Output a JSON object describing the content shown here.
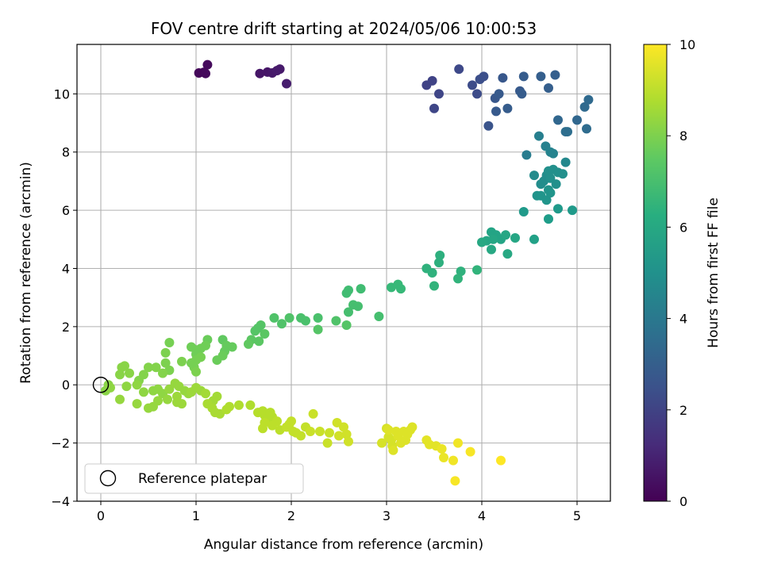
{
  "chart_data": {
    "type": "scatter",
    "title": "FOV centre drift starting at 2024/05/06 10:00:53",
    "xlabel": "Angular distance from reference (arcmin)",
    "ylabel": "Rotation from reference (arcmin)",
    "xlim": [
      -0.25,
      5.35
    ],
    "ylim": [
      -4.0,
      11.7
    ],
    "xticks": [
      0,
      1,
      2,
      3,
      4,
      5
    ],
    "yticks": [
      -4,
      -2,
      0,
      2,
      4,
      6,
      8,
      10
    ],
    "grid": true,
    "legend": {
      "position": "lower-left",
      "entries": [
        "Reference platepar"
      ]
    },
    "reference_point": {
      "x": 0,
      "y": 0,
      "label": "Reference platepar"
    },
    "colorbar": {
      "label": "Hours from first FF file",
      "range": [
        0,
        10
      ],
      "ticks": [
        0,
        2,
        4,
        6,
        8,
        10
      ],
      "colormap": "viridis"
    },
    "series": [
      {
        "points": [
          [
            1.03,
            10.72,
            0.2
          ],
          [
            1.08,
            10.74,
            0.2
          ],
          [
            1.12,
            11.0,
            0.25
          ],
          [
            1.1,
            10.7,
            0.25
          ],
          [
            1.67,
            10.7,
            0.6
          ],
          [
            1.75,
            10.75,
            0.6
          ],
          [
            1.8,
            10.72,
            0.65
          ],
          [
            1.85,
            10.8,
            0.7
          ],
          [
            1.88,
            10.85,
            0.7
          ],
          [
            1.95,
            10.35,
            0.8
          ],
          [
            3.42,
            10.3,
            2.0
          ],
          [
            3.48,
            10.45,
            2.0
          ],
          [
            3.5,
            9.5,
            2.1
          ],
          [
            3.55,
            10.0,
            2.1
          ],
          [
            3.76,
            10.85,
            2.2
          ],
          [
            3.9,
            10.3,
            2.3
          ],
          [
            3.95,
            10.0,
            2.3
          ],
          [
            3.98,
            10.5,
            2.4
          ],
          [
            4.02,
            10.6,
            2.4
          ],
          [
            4.07,
            8.9,
            2.6
          ],
          [
            4.14,
            9.85,
            2.7
          ],
          [
            4.15,
            9.4,
            2.8
          ],
          [
            4.18,
            10.0,
            2.8
          ],
          [
            4.22,
            10.55,
            2.7
          ],
          [
            4.27,
            9.5,
            2.9
          ],
          [
            4.4,
            10.1,
            2.8
          ],
          [
            4.42,
            10.0,
            2.9
          ],
          [
            4.44,
            10.6,
            2.9
          ],
          [
            4.62,
            10.6,
            3.0
          ],
          [
            4.7,
            10.2,
            3.0
          ],
          [
            4.77,
            10.65,
            3.0
          ],
          [
            4.8,
            9.1,
            3.3
          ],
          [
            4.88,
            8.7,
            3.6
          ],
          [
            4.9,
            8.7,
            3.6
          ],
          [
            5.0,
            9.1,
            3.3
          ],
          [
            5.08,
            9.55,
            3.4
          ],
          [
            5.1,
            8.8,
            3.5
          ],
          [
            5.12,
            9.8,
            3.4
          ],
          [
            4.47,
            7.9,
            4.2
          ],
          [
            4.6,
            8.55,
            4.3
          ],
          [
            4.67,
            8.2,
            4.4
          ],
          [
            4.72,
            8.0,
            4.5
          ],
          [
            4.75,
            7.95,
            4.5
          ],
          [
            4.88,
            7.65,
            4.7
          ],
          [
            4.55,
            7.2,
            4.8
          ],
          [
            4.62,
            6.9,
            4.9
          ],
          [
            4.65,
            7.0,
            4.9
          ],
          [
            4.68,
            7.2,
            4.9
          ],
          [
            4.7,
            7.35,
            5.0
          ],
          [
            4.72,
            7.1,
            5.0
          ],
          [
            4.75,
            7.4,
            5.0
          ],
          [
            4.78,
            6.9,
            5.0
          ],
          [
            4.8,
            7.3,
            5.0
          ],
          [
            4.85,
            7.25,
            5.0
          ],
          [
            4.7,
            6.7,
            5.1
          ],
          [
            4.58,
            6.5,
            5.1
          ],
          [
            4.62,
            6.5,
            5.2
          ],
          [
            4.68,
            6.35,
            5.2
          ],
          [
            4.72,
            6.6,
            5.2
          ],
          [
            4.8,
            6.05,
            5.4
          ],
          [
            4.95,
            6.0,
            5.4
          ],
          [
            4.44,
            5.95,
            5.4
          ],
          [
            4.7,
            5.7,
            5.5
          ],
          [
            4.55,
            5.0,
            5.7
          ],
          [
            4.1,
            5.25,
            5.8
          ],
          [
            4.15,
            5.15,
            5.8
          ],
          [
            4.2,
            5.0,
            5.8
          ],
          [
            4.25,
            5.15,
            5.9
          ],
          [
            4.12,
            5.0,
            5.9
          ],
          [
            4.05,
            4.95,
            5.9
          ],
          [
            4.0,
            4.9,
            6.0
          ],
          [
            4.35,
            5.05,
            5.9
          ],
          [
            4.27,
            4.5,
            6.0
          ],
          [
            4.1,
            4.65,
            6.0
          ],
          [
            3.55,
            4.2,
            6.3
          ],
          [
            3.56,
            4.45,
            6.3
          ],
          [
            3.42,
            4.0,
            6.4
          ],
          [
            3.48,
            3.85,
            6.4
          ],
          [
            3.5,
            3.4,
            6.5
          ],
          [
            3.78,
            3.9,
            6.4
          ],
          [
            3.75,
            3.65,
            6.5
          ],
          [
            3.95,
            3.95,
            6.5
          ],
          [
            3.05,
            3.35,
            6.7
          ],
          [
            3.12,
            3.45,
            6.7
          ],
          [
            3.15,
            3.3,
            6.7
          ],
          [
            2.58,
            3.15,
            6.9
          ],
          [
            2.6,
            3.25,
            6.9
          ],
          [
            2.73,
            3.3,
            6.9
          ],
          [
            2.65,
            2.75,
            7.0
          ],
          [
            2.7,
            2.7,
            7.0
          ],
          [
            2.6,
            2.5,
            7.0
          ],
          [
            2.92,
            2.35,
            7.0
          ],
          [
            2.28,
            2.3,
            7.1
          ],
          [
            2.1,
            2.3,
            7.1
          ],
          [
            2.15,
            2.2,
            7.1
          ],
          [
            1.82,
            2.3,
            7.2
          ],
          [
            1.98,
            2.3,
            7.2
          ],
          [
            1.9,
            2.1,
            7.2
          ],
          [
            2.47,
            2.2,
            7.2
          ],
          [
            2.58,
            2.05,
            7.3
          ],
          [
            2.28,
            1.9,
            7.3
          ],
          [
            1.65,
            1.95,
            7.3
          ],
          [
            1.68,
            2.05,
            7.3
          ],
          [
            1.62,
            1.85,
            7.3
          ],
          [
            1.72,
            1.75,
            7.4
          ],
          [
            1.58,
            1.55,
            7.4
          ],
          [
            1.66,
            1.5,
            7.4
          ],
          [
            1.55,
            1.4,
            7.5
          ],
          [
            1.28,
            1.55,
            7.5
          ],
          [
            1.32,
            1.35,
            7.6
          ],
          [
            1.38,
            1.3,
            7.6
          ],
          [
            1.3,
            1.15,
            7.6
          ],
          [
            1.28,
            1.0,
            7.7
          ],
          [
            1.22,
            0.85,
            7.7
          ],
          [
            1.12,
            1.55,
            7.7
          ],
          [
            1.1,
            1.35,
            7.8
          ],
          [
            1.05,
            1.25,
            7.8
          ],
          [
            1.0,
            1.2,
            7.8
          ],
          [
            0.95,
            1.3,
            7.8
          ],
          [
            1.0,
            1.05,
            7.8
          ],
          [
            1.05,
            0.95,
            7.9
          ],
          [
            1.0,
            0.85,
            7.9
          ],
          [
            0.95,
            0.75,
            7.9
          ],
          [
            0.98,
            0.6,
            7.9
          ],
          [
            1.0,
            0.45,
            8.0
          ],
          [
            0.85,
            0.8,
            8.0
          ],
          [
            0.72,
            1.45,
            7.9
          ],
          [
            0.68,
            1.1,
            8.0
          ],
          [
            0.68,
            0.75,
            8.0
          ],
          [
            0.72,
            0.5,
            8.0
          ],
          [
            0.65,
            0.4,
            8.1
          ],
          [
            0.58,
            0.6,
            8.1
          ],
          [
            0.5,
            0.6,
            8.1
          ],
          [
            0.45,
            0.35,
            8.1
          ],
          [
            0.4,
            0.15,
            8.1
          ],
          [
            0.3,
            0.4,
            8.2
          ],
          [
            0.25,
            0.65,
            8.2
          ],
          [
            0.22,
            0.6,
            8.2
          ],
          [
            0.2,
            0.35,
            8.2
          ],
          [
            0.08,
            0.0,
            8.2
          ],
          [
            0.05,
            -0.2,
            8.2
          ],
          [
            0.1,
            -0.1,
            8.3
          ],
          [
            0.27,
            -0.05,
            8.3
          ],
          [
            0.38,
            0.0,
            8.3
          ],
          [
            0.45,
            -0.25,
            8.3
          ],
          [
            0.55,
            -0.2,
            8.3
          ],
          [
            0.6,
            -0.15,
            8.3
          ],
          [
            0.65,
            -0.3,
            8.3
          ],
          [
            0.72,
            -0.15,
            8.4
          ],
          [
            0.78,
            0.05,
            8.4
          ],
          [
            0.82,
            -0.05,
            8.4
          ],
          [
            0.88,
            -0.2,
            8.4
          ],
          [
            0.92,
            -0.3,
            8.4
          ],
          [
            0.7,
            -0.5,
            8.4
          ],
          [
            0.6,
            -0.55,
            8.4
          ],
          [
            0.55,
            -0.75,
            8.4
          ],
          [
            0.5,
            -0.8,
            8.4
          ],
          [
            0.38,
            -0.65,
            8.4
          ],
          [
            0.2,
            -0.5,
            8.4
          ],
          [
            0.8,
            -0.6,
            8.5
          ],
          [
            0.85,
            -0.65,
            8.5
          ],
          [
            0.8,
            -0.4,
            8.5
          ],
          [
            0.95,
            -0.25,
            8.5
          ],
          [
            1.0,
            -0.1,
            8.5
          ],
          [
            1.05,
            -0.2,
            8.5
          ],
          [
            1.1,
            -0.3,
            8.6
          ],
          [
            1.22,
            -0.4,
            8.6
          ],
          [
            1.18,
            -0.55,
            8.6
          ],
          [
            1.12,
            -0.65,
            8.7
          ],
          [
            1.17,
            -0.8,
            8.7
          ],
          [
            1.2,
            -0.95,
            8.7
          ],
          [
            1.25,
            -1.0,
            8.7
          ],
          [
            1.35,
            -0.75,
            8.8
          ],
          [
            1.32,
            -0.85,
            8.8
          ],
          [
            1.45,
            -0.7,
            8.8
          ],
          [
            1.57,
            -0.7,
            8.8
          ],
          [
            1.65,
            -0.95,
            8.9
          ],
          [
            1.7,
            -0.9,
            8.9
          ],
          [
            1.72,
            -1.05,
            8.9
          ],
          [
            1.75,
            -1.15,
            8.9
          ],
          [
            1.78,
            -0.95,
            8.9
          ],
          [
            1.8,
            -1.1,
            8.9
          ],
          [
            1.85,
            -1.25,
            9.0
          ],
          [
            1.72,
            -1.3,
            9.0
          ],
          [
            1.7,
            -1.5,
            9.0
          ],
          [
            1.8,
            -1.4,
            9.0
          ],
          [
            1.88,
            -1.55,
            9.0
          ],
          [
            1.95,
            -1.45,
            9.1
          ],
          [
            1.98,
            -1.35,
            9.1
          ],
          [
            2.0,
            -1.25,
            9.1
          ],
          [
            2.02,
            -1.6,
            9.1
          ],
          [
            2.05,
            -1.65,
            9.1
          ],
          [
            2.1,
            -1.75,
            9.1
          ],
          [
            2.15,
            -1.45,
            9.1
          ],
          [
            2.2,
            -1.6,
            9.2
          ],
          [
            2.3,
            -1.6,
            9.2
          ],
          [
            2.4,
            -1.65,
            9.2
          ],
          [
            2.38,
            -2.0,
            9.2
          ],
          [
            2.23,
            -1.0,
            9.2
          ],
          [
            2.5,
            -1.75,
            9.3
          ],
          [
            2.55,
            -1.45,
            9.3
          ],
          [
            2.58,
            -1.7,
            9.3
          ],
          [
            2.6,
            -1.95,
            9.3
          ],
          [
            2.48,
            -1.3,
            9.3
          ],
          [
            2.95,
            -2.0,
            9.4
          ],
          [
            3.0,
            -1.5,
            9.4
          ],
          [
            3.02,
            -1.8,
            9.4
          ],
          [
            3.05,
            -1.9,
            9.4
          ],
          [
            3.06,
            -2.1,
            9.4
          ],
          [
            3.07,
            -2.25,
            9.5
          ],
          [
            3.1,
            -1.6,
            9.5
          ],
          [
            3.12,
            -1.75,
            9.5
          ],
          [
            3.15,
            -2.0,
            9.5
          ],
          [
            3.18,
            -1.6,
            9.5
          ],
          [
            3.2,
            -1.9,
            9.5
          ],
          [
            3.22,
            -1.7,
            9.5
          ],
          [
            3.25,
            -1.55,
            9.5
          ],
          [
            3.27,
            -1.45,
            9.5
          ],
          [
            3.02,
            -1.55,
            9.5
          ],
          [
            3.42,
            -1.9,
            9.6
          ],
          [
            3.45,
            -2.05,
            9.6
          ],
          [
            3.52,
            -2.1,
            9.6
          ],
          [
            3.58,
            -2.2,
            9.7
          ],
          [
            3.6,
            -2.5,
            9.7
          ],
          [
            3.7,
            -2.6,
            9.8
          ],
          [
            3.72,
            -3.3,
            9.9
          ],
          [
            3.75,
            -2.0,
            9.8
          ],
          [
            3.88,
            -2.3,
            9.9
          ],
          [
            4.2,
            -2.6,
            10.0
          ]
        ]
      }
    ]
  }
}
